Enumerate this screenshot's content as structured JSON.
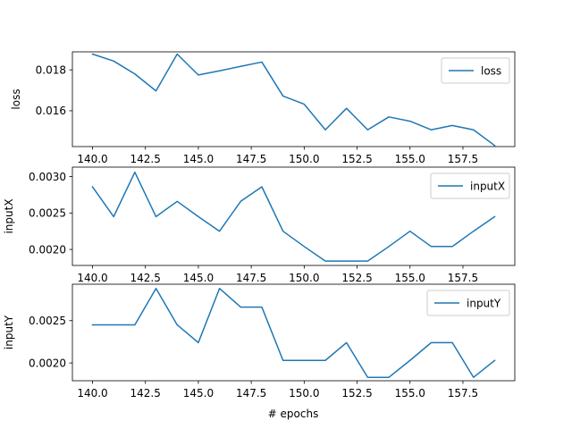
{
  "figure": {
    "xlabel": "# epochs"
  },
  "chart_data": [
    {
      "type": "line",
      "xlabel": "",
      "ylabel": "loss",
      "xlim": [
        139.05,
        159.95
      ],
      "ylim": [
        0.01425,
        0.01888
      ],
      "xticks": [
        140.0,
        142.5,
        145.0,
        147.5,
        150.0,
        152.5,
        155.0,
        157.5
      ],
      "xtick_labels": [
        "140.0",
        "142.5",
        "145.0",
        "147.5",
        "150.0",
        "152.5",
        "155.0",
        "157.5"
      ],
      "yticks": [
        0.016,
        0.018
      ],
      "ytick_labels": [
        "0.016",
        "0.018"
      ],
      "grid": false,
      "legend_position": "upper right",
      "color": "#1f77b4",
      "series": [
        {
          "name": "loss",
          "x": [
            140,
            141,
            142,
            143,
            144,
            145,
            146,
            147,
            148,
            149,
            150,
            151,
            152,
            153,
            154,
            155,
            156,
            157,
            158,
            159
          ],
          "values": [
            0.01877,
            0.01843,
            0.0178,
            0.01697,
            0.01877,
            0.01775,
            0.01795,
            0.01817,
            0.01838,
            0.01672,
            0.01632,
            0.01507,
            0.01612,
            0.01507,
            0.0157,
            0.01549,
            0.01507,
            0.01528,
            0.01507,
            0.0143
          ]
        }
      ]
    },
    {
      "type": "line",
      "xlabel": "",
      "ylabel": "inputX",
      "xlim": [
        139.05,
        159.95
      ],
      "ylim": [
        0.00178,
        0.00313
      ],
      "xticks": [
        140.0,
        142.5,
        145.0,
        147.5,
        150.0,
        152.5,
        155.0,
        157.5
      ],
      "xtick_labels": [
        "140.0",
        "142.5",
        "145.0",
        "147.5",
        "150.0",
        "152.5",
        "155.0",
        "157.5"
      ],
      "yticks": [
        0.002,
        0.0025,
        0.003
      ],
      "ytick_labels": [
        "0.0020",
        "0.0025",
        "0.0030"
      ],
      "grid": false,
      "legend_position": "upper right",
      "color": "#1f77b4",
      "series": [
        {
          "name": "inputX",
          "x": [
            140,
            141,
            142,
            143,
            144,
            145,
            146,
            147,
            148,
            149,
            150,
            151,
            152,
            153,
            154,
            155,
            156,
            157,
            158,
            159
          ],
          "values": [
            0.00286,
            0.00245,
            0.00306,
            0.00245,
            0.00266,
            0.00245,
            0.00225,
            0.00266,
            0.00286,
            0.00225,
            0.00204,
            0.00184,
            0.00184,
            0.00184,
            0.00204,
            0.00225,
            0.00204,
            0.00204,
            0.00225,
            0.00245
          ]
        }
      ]
    },
    {
      "type": "line",
      "xlabel": "# epochs",
      "ylabel": "inputY",
      "xlim": [
        139.05,
        159.95
      ],
      "ylim": [
        0.00179,
        0.00293
      ],
      "xticks": [
        140.0,
        142.5,
        145.0,
        147.5,
        150.0,
        152.5,
        155.0,
        157.5
      ],
      "xtick_labels": [
        "140.0",
        "142.5",
        "145.0",
        "147.5",
        "150.0",
        "152.5",
        "155.0",
        "157.5"
      ],
      "yticks": [
        0.002,
        0.0025
      ],
      "ytick_labels": [
        "0.0020",
        "0.0025"
      ],
      "grid": false,
      "legend_position": "upper right",
      "color": "#1f77b4",
      "series": [
        {
          "name": "inputY",
          "x": [
            140,
            141,
            142,
            143,
            144,
            145,
            146,
            147,
            148,
            149,
            150,
            151,
            152,
            153,
            154,
            155,
            156,
            157,
            158,
            159
          ],
          "values": [
            0.00245,
            0.00245,
            0.00245,
            0.00288,
            0.00245,
            0.00224,
            0.00288,
            0.00266,
            0.00266,
            0.00203,
            0.00203,
            0.00203,
            0.00224,
            0.00183,
            0.00183,
            0.00203,
            0.00224,
            0.00224,
            0.00183,
            0.00203
          ]
        }
      ]
    }
  ]
}
